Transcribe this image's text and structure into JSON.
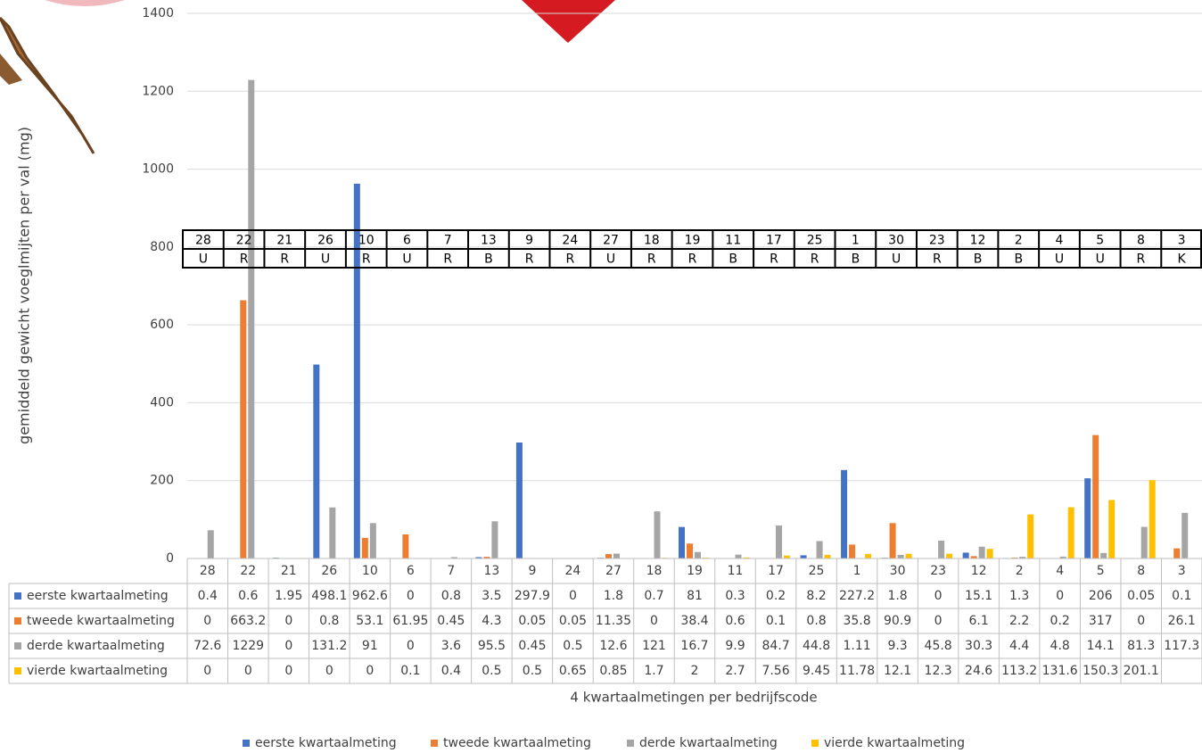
{
  "chart_data": {
    "type": "bar",
    "y_label": "gemiddeld gewicht voeglmijten per val (mg)",
    "x_label": "4 kwartaalmetingen per bedrijfscode",
    "categories": [
      "28",
      "22",
      "21",
      "26",
      "10",
      "6",
      "7",
      "13",
      "9",
      "24",
      "27",
      "18",
      "19",
      "11",
      "17",
      "25",
      "1",
      "30",
      "23",
      "12",
      "2",
      "4",
      "5",
      "8",
      "3"
    ],
    "codes": [
      "U",
      "R",
      "R",
      "U",
      "R",
      "U",
      "R",
      "B",
      "R",
      "R",
      "U",
      "R",
      "R",
      "B",
      "R",
      "R",
      "B",
      "U",
      "R",
      "B",
      "B",
      "U",
      "U",
      "R",
      "K"
    ],
    "series": [
      {
        "name": "eerste kwartaalmeting",
        "color": "#4472c4",
        "values": [
          0.4,
          0.6,
          1.95,
          498.1,
          962.6,
          0,
          0.8,
          3.5,
          297.9,
          0,
          1.8,
          0.7,
          81,
          0.3,
          0.2,
          8.2,
          227.2,
          1.8,
          0,
          15.1,
          1.3,
          0,
          206,
          0.05,
          0.1
        ]
      },
      {
        "name": "tweede kwartaalmeting",
        "color": "#ed7d31",
        "values": [
          0,
          663.2,
          0,
          0.8,
          53.1,
          61.95,
          0.45,
          4.3,
          0.05,
          0.05,
          11.35,
          0,
          38.4,
          0.6,
          0.1,
          0.8,
          35.8,
          90.9,
          0,
          6.1,
          2.2,
          0.2,
          317,
          0,
          26.1
        ]
      },
      {
        "name": "derde kwartaalmeting",
        "color": "#a5a5a5",
        "values": [
          72.6,
          1229,
          0,
          131.2,
          91,
          0,
          3.6,
          95.5,
          0.45,
          0.5,
          12.6,
          121,
          16.7,
          9.9,
          84.7,
          44.8,
          1.11,
          9.3,
          45.8,
          30.3,
          4.4,
          4.8,
          14.1,
          81.3,
          117.3
        ]
      },
      {
        "name": "vierde kwartaalmeting",
        "color": "#ffc000",
        "values": [
          0,
          0,
          0,
          0,
          0,
          0.1,
          0.4,
          0.5,
          0.5,
          0.65,
          0.85,
          1.7,
          2,
          2.7,
          7.56,
          9.45,
          11.78,
          12.1,
          12.3,
          24.6,
          113.2,
          131.6,
          150.3,
          201.1,
          null
        ]
      }
    ],
    "ylim": [
      0,
      1400
    ],
    "yticks": [
      0,
      200,
      400,
      600,
      800,
      1000,
      1200,
      1400
    ],
    "grid": true
  }
}
